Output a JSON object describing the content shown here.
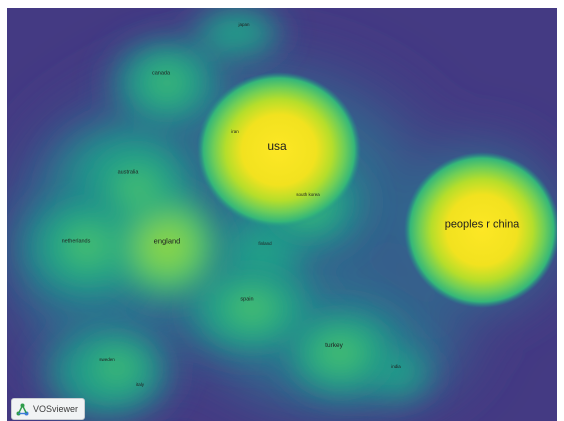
{
  "app": {
    "badge_label": "VOSviewer",
    "badge_icon": "vosviewer-logo-icon"
  },
  "map": {
    "view": "density-visualization",
    "colormap": [
      "#443a83",
      "#31688e",
      "#21918c",
      "#35b779",
      "#90d743",
      "#fde725"
    ],
    "items": [
      {
        "id": "japan",
        "label": "japan"
      },
      {
        "id": "canada",
        "label": "canada"
      },
      {
        "id": "iran",
        "label": "iran"
      },
      {
        "id": "usa",
        "label": "usa"
      },
      {
        "id": "australia",
        "label": "australia"
      },
      {
        "id": "south-korea",
        "label": "south korea"
      },
      {
        "id": "peoples-r-china",
        "label": "peoples r china"
      },
      {
        "id": "netherlands",
        "label": "netherlands"
      },
      {
        "id": "england",
        "label": "england"
      },
      {
        "id": "finland",
        "label": "finland"
      },
      {
        "id": "spain",
        "label": "spain"
      },
      {
        "id": "turkey",
        "label": "turkey"
      },
      {
        "id": "sweden",
        "label": "sweden"
      },
      {
        "id": "india",
        "label": "india"
      },
      {
        "id": "italy",
        "label": "italy"
      }
    ]
  }
}
